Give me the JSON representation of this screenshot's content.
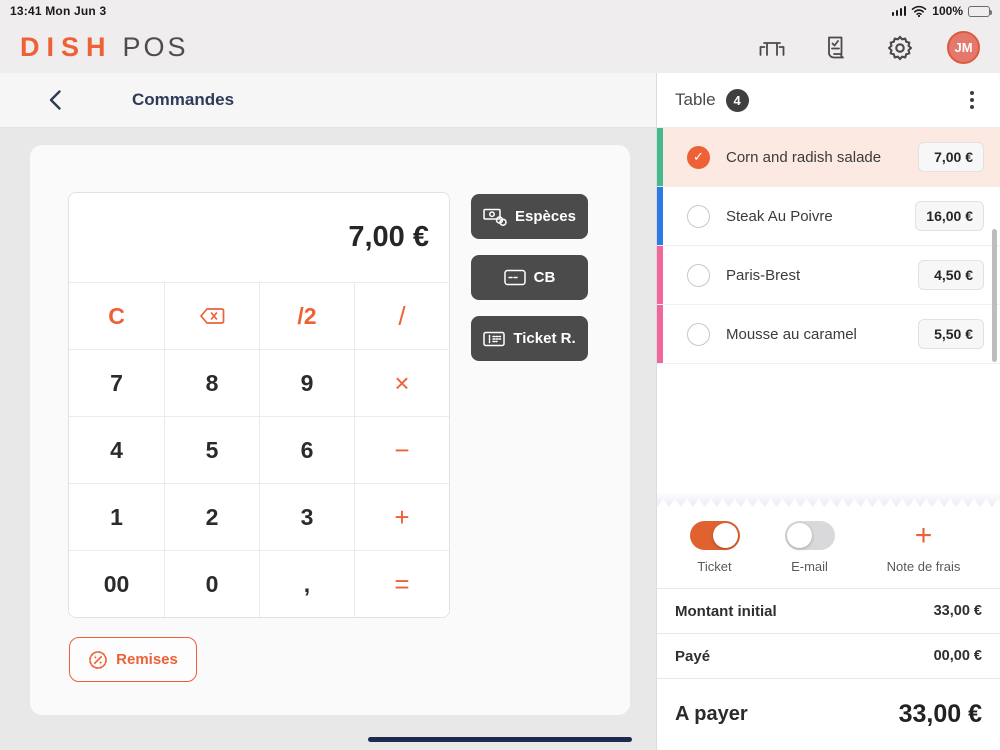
{
  "status_bar": {
    "time": "13:41 Mon Jun 3",
    "battery_percent": "100%"
  },
  "header": {
    "logo_dish": "DISH",
    "logo_pos": "POS",
    "avatar_initials": "JM",
    "icons": [
      "tables-icon",
      "orders-receipt-icon",
      "settings-gear-icon",
      "user-avatar"
    ]
  },
  "left": {
    "title": "Commandes",
    "display_value": "7,00 €",
    "numpad_rows": [
      [
        "C",
        "⌫",
        "/2",
        "/"
      ],
      [
        "7",
        "8",
        "9",
        "×"
      ],
      [
        "4",
        "5",
        "6",
        "−"
      ],
      [
        "1",
        "2",
        "3",
        "+"
      ],
      [
        "00",
        "0",
        ",",
        "="
      ]
    ],
    "payment_buttons": [
      {
        "label": "Espèces",
        "icon": "cash-icon"
      },
      {
        "label": "CB",
        "icon": "credit-card-icon"
      },
      {
        "label": "Ticket R.",
        "icon": "voucher-icon"
      }
    ],
    "remises_label": "Remises"
  },
  "right": {
    "table_label": "Table",
    "table_badge": "4",
    "items": [
      {
        "name": "Corn and radish salade",
        "price": "7,00 €",
        "checked": true,
        "strip_color": "#43b98c"
      },
      {
        "name": "Steak Au Poivre",
        "price": "16,00 €",
        "checked": false,
        "strip_color": "#2c79e8"
      },
      {
        "name": "Paris-Brest",
        "price": "4,50 €",
        "checked": false,
        "strip_color": "#f2679b"
      },
      {
        "name": "Mousse au caramel",
        "price": "5,50 €",
        "checked": false,
        "strip_color": "#f2679b"
      }
    ],
    "footer": {
      "toggles": [
        {
          "label": "Ticket",
          "on": true
        },
        {
          "label": "E-mail",
          "on": false
        }
      ],
      "note_plus": "+",
      "note_label": "Note de frais",
      "totals": [
        {
          "label": "Montant initial",
          "value": "33,00 €"
        },
        {
          "label": "Payé",
          "value": "00,00 €"
        }
      ],
      "due_label": "A payer",
      "due_value": "33,00 €"
    }
  },
  "colors": {
    "accent_orange": "#ee6137",
    "selected_row_bg": "#fbe9e2",
    "dark_button": "#4b4b4b",
    "navy": "#2e3a59",
    "toggle_on": "#e0632f"
  }
}
